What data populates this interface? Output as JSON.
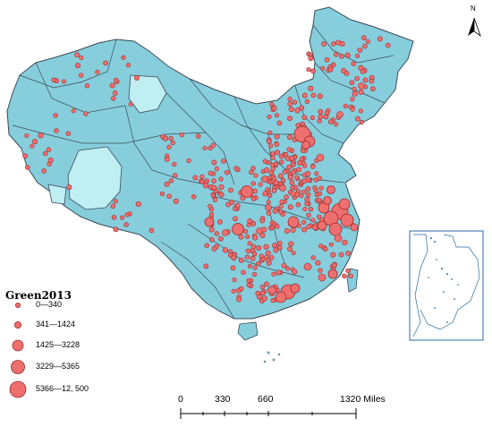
{
  "legend": {
    "title": "Green2013",
    "classes": [
      {
        "label": "0—340"
      },
      {
        "label": "341—1424"
      },
      {
        "label": "1425—3228"
      },
      {
        "label": "3229—5365"
      },
      {
        "label": "5366—12, 500"
      }
    ]
  },
  "scale_bar": {
    "labels": [
      "0",
      "330",
      "660",
      "1320 Miles"
    ]
  },
  "north_arrow": {
    "label": "N",
    "icon": "north-arrow-icon"
  },
  "colors": {
    "land": "#87cedd",
    "land_pale": "#bfeef3",
    "boundary": "#3a4a55",
    "bubble_fill": "#ef6f6f",
    "bubble_stroke": "#9a2a2a",
    "sea_inset_border": "#2a6aa0"
  }
}
